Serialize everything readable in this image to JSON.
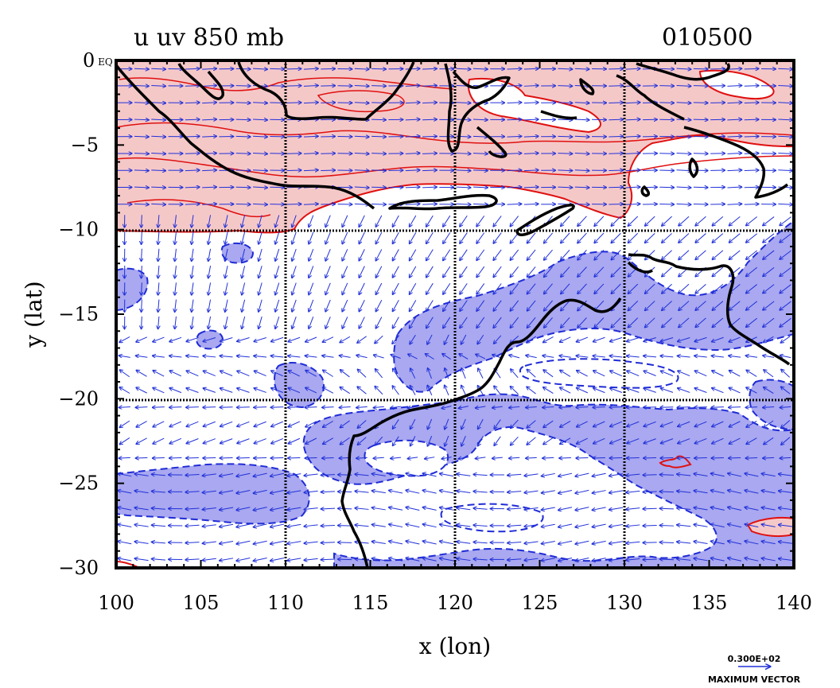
{
  "title_left": "u uv 850 mb",
  "title_right": "010500",
  "chart_data": {
    "type": "contour",
    "xlabel": "x (lon)",
    "ylabel": "y (lat)",
    "xlim": [
      100,
      140
    ],
    "ylim": [
      -30,
      0
    ],
    "x_ticks": [
      "100",
      "105",
      "110",
      "115",
      "120",
      "125",
      "130",
      "135",
      "140"
    ],
    "y_ticks": [
      "0 EQ",
      "−5",
      "−10",
      "−15",
      "−20",
      "−25",
      "−30"
    ],
    "y_tick_values": [
      0,
      -5,
      -10,
      -15,
      -20,
      -25,
      -30
    ],
    "grid_lon": [
      110,
      120,
      130
    ],
    "grid_lat": [
      -10,
      -20
    ],
    "fields": {
      "positive_u": {
        "color": "#f5c8c8",
        "line": "#e01010",
        "description_region": "northern band 0 to about -10 lat"
      },
      "negative_u": {
        "color": "#a9a8f0",
        "line": "#1f2bd6"
      }
    },
    "vectors": {
      "color": "#2030d8",
      "key_value": "0.300E+02",
      "key_label": "MAXIMUM VECTOR"
    }
  }
}
